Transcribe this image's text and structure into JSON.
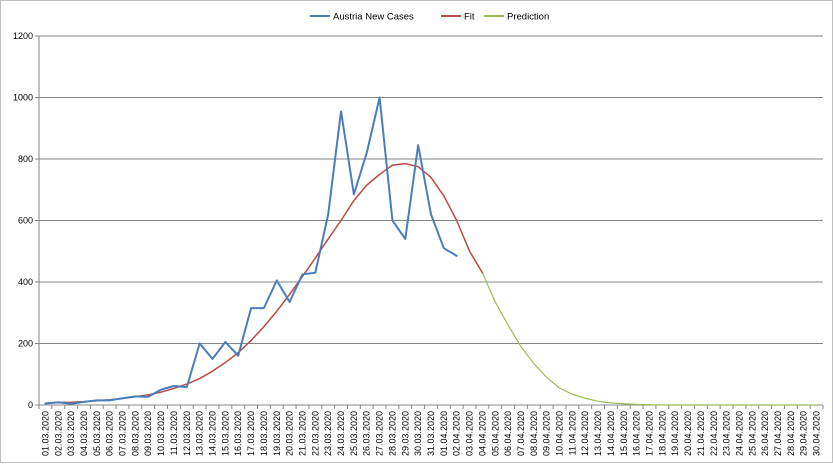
{
  "chart_data": {
    "type": "line",
    "title": "",
    "xlabel": "",
    "ylabel": "",
    "ylim": [
      0,
      1200
    ],
    "yticks": [
      0,
      200,
      400,
      600,
      800,
      1000,
      1200
    ],
    "grid": "horizontal",
    "legend_position": "top-center",
    "categories": [
      "01.03.2020",
      "02.03.2020",
      "03.03.2020",
      "04.03.2020",
      "05.03.2020",
      "06.03.2020",
      "07.03.2020",
      "08.03.2020",
      "09.03.2020",
      "10.03.2020",
      "11.03.2020",
      "12.03.2020",
      "13.03.2020",
      "14.03.2020",
      "15.03.2020",
      "16.03.2020",
      "17.03.2020",
      "18.03.2020",
      "19.03.2020",
      "20.03.2020",
      "21.03.2020",
      "22.03.2020",
      "23.03.2020",
      "24.03.2020",
      "25.03.2020",
      "26.03.2020",
      "27.03.2020",
      "28.03.2020",
      "29.03.2020",
      "30.03.2020",
      "31.03.2020",
      "01.04.2020",
      "02.04.2020",
      "03.04.2020",
      "04.04.2020",
      "05.04.2020",
      "06.04.2020",
      "07.04.2020",
      "08.04.2020",
      "09.04.2020",
      "10.04.2020",
      "11.04.2020",
      "12.04.2020",
      "13.04.2020",
      "14.04.2020",
      "15.04.2020",
      "16.04.2020",
      "17.04.2020",
      "18.04.2020",
      "19.04.2020",
      "20.04.2020",
      "21.04.2020",
      "22.04.2020",
      "23.04.2020",
      "24.04.2020",
      "25.04.2020",
      "26.04.2020",
      "27.04.2020",
      "28.04.2020",
      "29.04.2020",
      "30.04.2020"
    ],
    "series": [
      {
        "name": "Austria New Cases",
        "color": "#4a7ebb",
        "width": 2,
        "values": [
          5,
          9,
          4,
          10,
          15,
          15,
          22,
          28,
          27,
          50,
          62,
          58,
          200,
          150,
          205,
          160,
          315,
          315,
          405,
          335,
          425,
          430,
          620,
          955,
          685,
          820,
          1000,
          600,
          540,
          845,
          620,
          510,
          485,
          null,
          null,
          null,
          null,
          null,
          null,
          null,
          null,
          null,
          null,
          null,
          null,
          null,
          null,
          null,
          null,
          null,
          null,
          null,
          null,
          null,
          null,
          null,
          null,
          null,
          null,
          null,
          null
        ]
      },
      {
        "name": "Fit",
        "color": "#be4b48",
        "width": 1.5,
        "values": [
          6,
          8,
          9,
          11,
          14,
          17,
          21,
          27,
          33,
          42,
          54,
          68,
          86,
          110,
          138,
          170,
          210,
          255,
          305,
          360,
          418,
          478,
          540,
          600,
          665,
          715,
          750,
          780,
          785,
          775,
          740,
          680,
          600,
          500,
          430,
          null,
          null,
          null,
          null,
          null,
          null,
          null,
          null,
          null,
          null,
          null,
          null,
          null,
          null,
          null,
          null,
          null,
          null,
          null,
          null,
          null,
          null,
          null,
          null,
          null,
          null
        ]
      },
      {
        "name": "Prediction",
        "color": "#9bbb59",
        "width": 1.2,
        "values": [
          6,
          8,
          9,
          11,
          14,
          17,
          21,
          27,
          33,
          42,
          54,
          68,
          86,
          110,
          138,
          170,
          210,
          255,
          305,
          360,
          418,
          478,
          540,
          600,
          665,
          715,
          750,
          780,
          785,
          775,
          740,
          680,
          600,
          500,
          430,
          335,
          260,
          190,
          135,
          90,
          55,
          35,
          22,
          12,
          7,
          4,
          2,
          1,
          0,
          0,
          0,
          0,
          0,
          0,
          0,
          0,
          0,
          0,
          0,
          0,
          0
        ]
      }
    ]
  }
}
